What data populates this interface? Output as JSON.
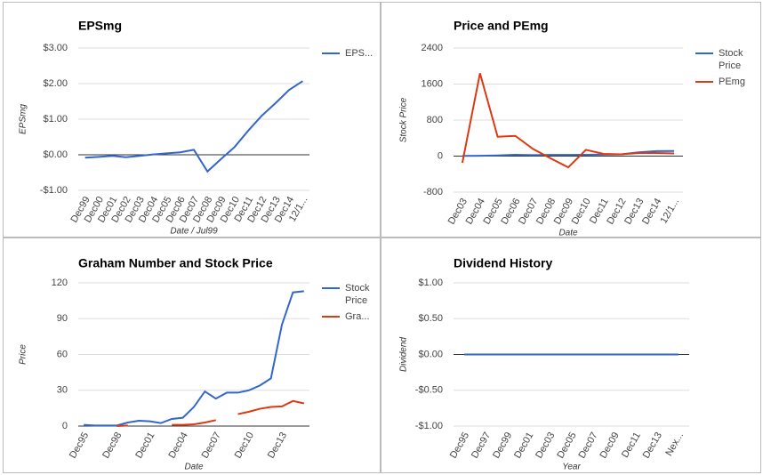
{
  "chart_data": [
    {
      "type": "line",
      "title": "EPSmg",
      "x_label": "Date / Jul99",
      "y_label": "EPSmg",
      "categories": [
        "Dec99",
        "Dec00",
        "Dec01",
        "Dec02",
        "Dec03",
        "Dec04",
        "Dec05",
        "Dec06",
        "Dec07",
        "Dec08",
        "Dec09",
        "Dec10",
        "Dec11",
        "Dec12",
        "Dec13",
        "Dec14",
        "12/1..."
      ],
      "series": [
        {
          "name": "EPS...",
          "color": "#3366cc",
          "values": [
            -0.08,
            -0.06,
            -0.03,
            -0.07,
            -0.03,
            0.01,
            0.04,
            0.07,
            0.14,
            -0.47,
            -0.12,
            0.22,
            0.68,
            1.1,
            1.45,
            1.82,
            2.07
          ]
        }
      ],
      "ylim": [
        -1,
        3
      ],
      "yticks": [
        {
          "value": 3,
          "label": "$3.00"
        },
        {
          "value": 2,
          "label": "$2.00"
        },
        {
          "value": 1,
          "label": "$1.00"
        },
        {
          "value": 0,
          "label": "$0.00"
        },
        {
          "value": -1,
          "label": "-$1.00"
        }
      ],
      "grid": true,
      "legend": "right"
    },
    {
      "type": "line",
      "title": "Price and PEmg",
      "x_label": "Date",
      "y_label": "Stock Price",
      "categories": [
        "Dec03",
        "Dec04",
        "Dec05",
        "Dec06",
        "Dec07",
        "Dec08",
        "Dec09",
        "Dec10",
        "Dec11",
        "Dec12",
        "Dec13",
        "Dec14",
        "12/1..."
      ],
      "series": [
        {
          "name": "Stock Price",
          "color": "#3366cc",
          "values": [
            6,
            7,
            16,
            29,
            23,
            28,
            28,
            30,
            34,
            40,
            85,
            112,
            113
          ]
        },
        {
          "name": "PEmg",
          "color": "#dc3912",
          "values": [
            -150,
            1840,
            430,
            450,
            160,
            -50,
            -250,
            140,
            50,
            40,
            70,
            70,
            60
          ]
        }
      ],
      "ylim": [
        -800,
        2400
      ],
      "yticks": [
        2400,
        1600,
        800,
        0,
        -800
      ],
      "grid": true,
      "legend": "right"
    },
    {
      "type": "line",
      "title": "Graham Number and Stock Price",
      "x_label": "Date",
      "y_label": "Price",
      "categories": [
        "Dec95",
        null,
        null,
        "Dec98",
        null,
        null,
        "Dec01",
        null,
        null,
        "Dec04",
        null,
        null,
        "Dec07",
        null,
        null,
        "Dec10",
        null,
        null,
        "Dec13",
        null,
        null
      ],
      "series": [
        {
          "name": "Stock Price",
          "color": "#3366cc",
          "values": [
            1,
            0.5,
            0.5,
            0.5,
            3,
            4.5,
            4,
            2.5,
            6,
            7,
            16,
            29,
            23,
            28,
            28,
            30,
            34,
            40,
            85,
            112,
            113
          ]
        },
        {
          "name": "Gra...",
          "color": "#dc3912",
          "values": [
            null,
            null,
            null,
            0,
            0.5,
            null,
            null,
            null,
            1,
            1,
            1.5,
            3,
            5,
            null,
            10,
            12,
            14.5,
            16,
            16.5,
            21,
            19
          ]
        }
      ],
      "ylim": [
        0,
        120
      ],
      "yticks": [
        120,
        90,
        60,
        30,
        0
      ],
      "grid": true,
      "legend": "right"
    },
    {
      "type": "line",
      "title": "Dividend History",
      "x_label": "Year",
      "y_label": "Dividend",
      "categories": [
        "Dec95",
        "Dec97",
        "Dec99",
        "Dec01",
        "Dec03",
        "Dec05",
        "Dec07",
        "Dec09",
        "Dec11",
        "Dec13",
        "Nex..."
      ],
      "series": [
        {
          "color": "#3366cc",
          "values": [
            0,
            0,
            0,
            0,
            0,
            0,
            0,
            0,
            0,
            0,
            0
          ]
        }
      ],
      "ylim": [
        -1,
        1
      ],
      "yticks": [
        {
          "value": 1,
          "label": "$1.00"
        },
        {
          "value": 0.5,
          "label": "$0.50"
        },
        {
          "value": 0,
          "label": "$0.00"
        },
        {
          "value": -0.5,
          "label": "-$0.50"
        },
        {
          "value": -1,
          "label": "-$1.00"
        }
      ],
      "grid": true
    }
  ]
}
